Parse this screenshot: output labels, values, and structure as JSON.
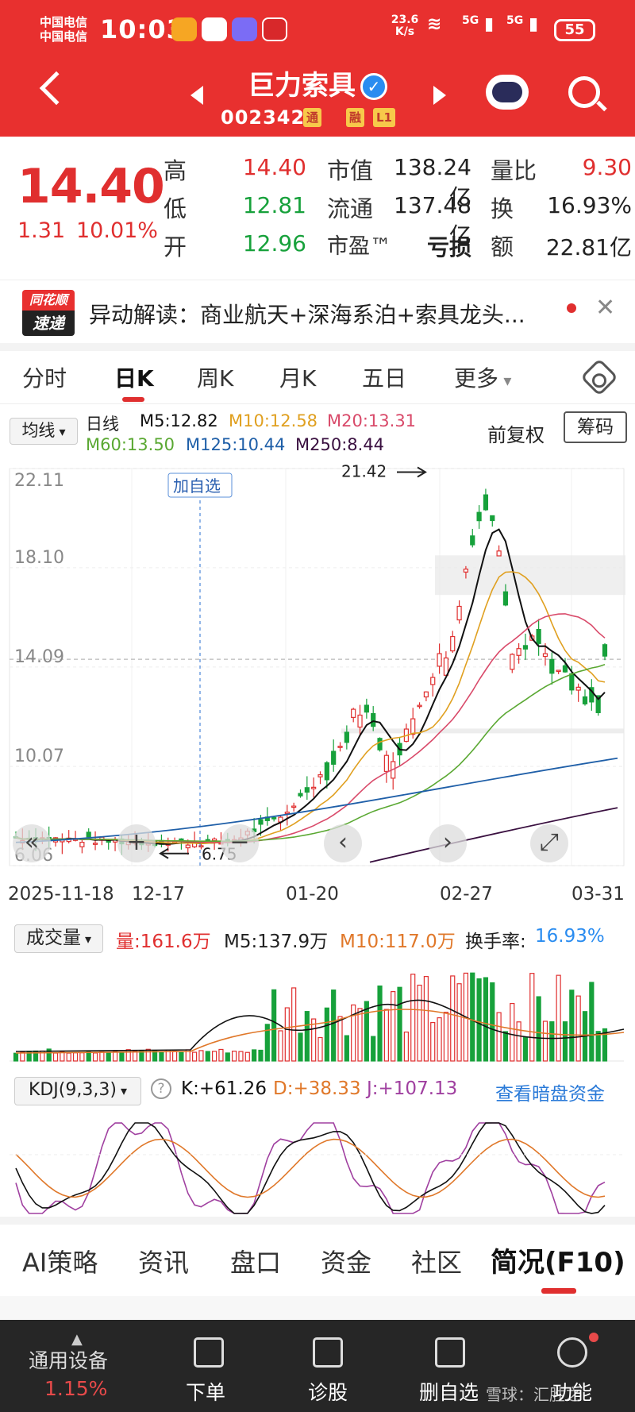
{
  "status_bar": {
    "carrier1": "中国电信",
    "carrier2": "中国电信",
    "time": "10:03",
    "net_speed": "23.6 K/s",
    "net_num": "6",
    "sig1": "5G",
    "sig2": "5G",
    "battery": "55"
  },
  "header": {
    "stock_name": "巨力索具",
    "code": "002342",
    "tags": [
      "通",
      "融",
      "L1"
    ]
  },
  "quote": {
    "price": "14.40",
    "change": "1.31",
    "change_pct": "10.01%",
    "labels": {
      "high": "高",
      "low": "低",
      "open": "开",
      "mcap": "市值",
      "float": "流通",
      "pe": "市盈™",
      "vol_ratio": "量比",
      "turnover": "换",
      "amount": "额"
    },
    "high": "14.40",
    "low": "12.81",
    "open": "12.96",
    "mcap": "138.24亿",
    "float": "137.48亿",
    "pe": "亏损",
    "vol_ratio": "9.30",
    "turnover": "16.93%",
    "amount": "22.81亿"
  },
  "news": {
    "logo_top": "同花顺",
    "logo_bottom": "速递",
    "text": "异动解读：商业航天+深海系泊+索具龙头..."
  },
  "period_tabs": [
    "分时",
    "日K",
    "周K",
    "月K",
    "五日",
    "更多"
  ],
  "ma_row": {
    "indicator": "均线",
    "period": "日线",
    "m5": "M5:12.82",
    "m10": "M10:12.58",
    "m20": "M20:13.31",
    "m60": "M60:13.50",
    "m125": "M125:10.44",
    "m250": "M250:8.44",
    "adjust": "前复权",
    "chips": "筹码"
  },
  "chart_data": {
    "type": "candlestick",
    "y_ticks": [
      "22.11",
      "18.10",
      "14.09",
      "10.07",
      "6.06"
    ],
    "ylim": [
      6.06,
      22.11
    ],
    "x_labels": [
      "2025-11-18",
      "12-17",
      "01-20",
      "02-27",
      "03-31"
    ],
    "annotations": {
      "high": "21.42",
      "low": "6.75",
      "add_watch": "加自选"
    },
    "colors": {
      "up": "#e02f2f",
      "down": "#17a13b",
      "m5": "#111111",
      "m10": "#e0a020",
      "m20": "#d94a6a",
      "m60": "#5aa832",
      "m125": "#1f5fa8",
      "m250": "#3a1040"
    }
  },
  "controls": [
    "«",
    "+",
    "−",
    "‹",
    "›",
    "⤢"
  ],
  "volume": {
    "label": "成交量",
    "vol": "量:161.6万",
    "m5": "M5:137.9万",
    "m10": "M10:117.0万",
    "turnover_label": "换手率:",
    "turnover": "16.93%"
  },
  "kdj": {
    "label": "KDJ(9,3,3)",
    "help": "?",
    "k": "K:+61.26",
    "d": "D:+38.33",
    "j": "J:+107.13",
    "link": "查看暗盘资金"
  },
  "bottom_tabs": [
    "AI策略",
    "资讯",
    "盘口",
    "资金",
    "社区",
    "简况(F10)"
  ],
  "bottom_bar": {
    "device": "通用设备",
    "device_pct": "1.15%",
    "order": "下单",
    "diagnose": "诊股",
    "remove": "删自选",
    "func": "功能",
    "watermark": "雪球：汇胜之"
  }
}
